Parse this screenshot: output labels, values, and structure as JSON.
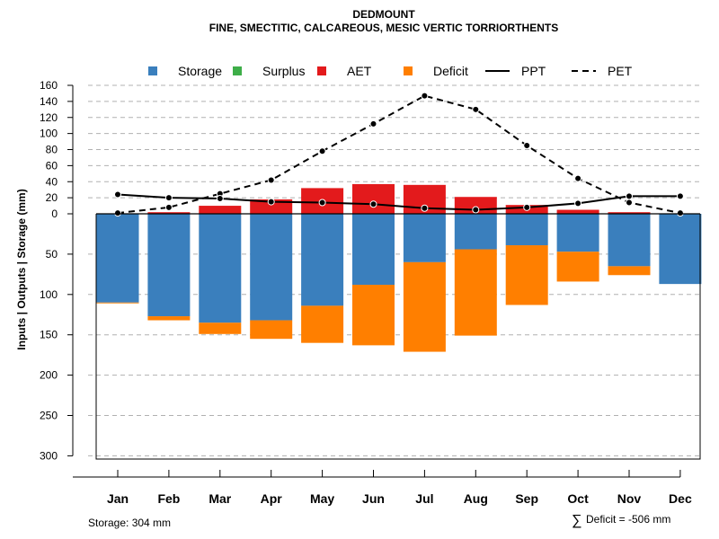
{
  "chart_data": {
    "type": "bar",
    "title": "DEDMOUNT",
    "subtitle": "FINE, SMECTITIC, CALCAREOUS, MESIC VERTIC TORRIORTHENTS",
    "ylabel": "Inputs | Outputs | Storage     (mm)",
    "categories": [
      "Jan",
      "Feb",
      "Mar",
      "Apr",
      "May",
      "Jun",
      "Jul",
      "Aug",
      "Sep",
      "Oct",
      "Nov",
      "Dec"
    ],
    "legend": [
      {
        "name": "Storage",
        "kind": "box",
        "color": "#3a7fbd"
      },
      {
        "name": "Surplus",
        "kind": "box",
        "color": "#3eae49"
      },
      {
        "name": "AET",
        "kind": "box",
        "color": "#e31a1c"
      },
      {
        "name": "Deficit",
        "kind": "box",
        "color": "#ff7f00"
      },
      {
        "name": "PPT",
        "kind": "line",
        "dash": "solid"
      },
      {
        "name": "PET",
        "kind": "line",
        "dash": "dashed"
      }
    ],
    "upper_axis": {
      "ticks": [
        0,
        20,
        40,
        60,
        80,
        100,
        120,
        140,
        160
      ],
      "ylim": [
        0,
        160
      ]
    },
    "lower_axis": {
      "ticks": [
        0,
        50,
        100,
        150,
        200,
        250,
        300
      ],
      "ylim": [
        0,
        304
      ]
    },
    "series": {
      "storage": [
        110,
        127,
        135,
        132,
        114,
        88,
        60,
        44,
        39,
        47,
        65,
        87
      ],
      "deficit": [
        1,
        5,
        14,
        23,
        46,
        75,
        111,
        107,
        74,
        37,
        11,
        0
      ],
      "aet": [
        0,
        2,
        10,
        18,
        32,
        37,
        36,
        21,
        11,
        5,
        2,
        0
      ],
      "surplus": [
        0,
        0,
        0,
        0,
        0,
        0,
        0,
        0,
        0,
        0,
        0,
        0
      ],
      "ppt": [
        24,
        20,
        19,
        15,
        14,
        12,
        7,
        5,
        8,
        13,
        22,
        22
      ],
      "pet": [
        1,
        8,
        25,
        42,
        78,
        112,
        147,
        130,
        85,
        44,
        14,
        1
      ]
    },
    "colors": {
      "storage": "#3a7fbd",
      "deficit": "#ff7f00",
      "aet": "#e31a1c",
      "surplus": "#3eae49"
    },
    "footer_left": "Storage: 304 mm",
    "footer_right": "Deficit = -506 mm",
    "footer_symbol": "∑"
  }
}
